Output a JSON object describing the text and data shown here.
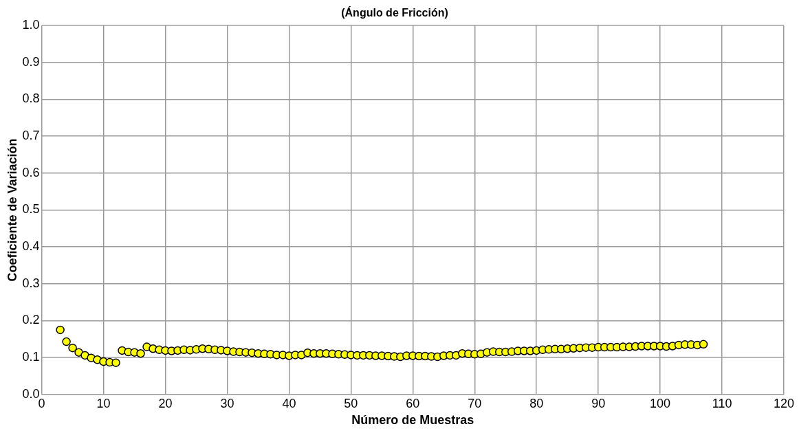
{
  "chart_data": {
    "type": "scatter",
    "title": "(Ángulo de Fricción)",
    "xlabel": "Número de Muestras",
    "ylabel": "Coeficiente de Variación",
    "x": [
      3,
      4,
      5,
      6,
      7,
      8,
      9,
      10,
      11,
      12,
      13,
      14,
      15,
      16,
      17,
      18,
      19,
      20,
      21,
      22,
      23,
      24,
      25,
      26,
      27,
      28,
      29,
      30,
      31,
      32,
      33,
      34,
      35,
      36,
      37,
      38,
      39,
      40,
      41,
      42,
      43,
      44,
      45,
      46,
      47,
      48,
      49,
      50,
      51,
      52,
      53,
      54,
      55,
      56,
      57,
      58,
      59,
      60,
      61,
      62,
      63,
      64,
      65,
      66,
      67,
      68,
      69,
      70,
      71,
      72,
      73,
      74,
      75,
      76,
      77,
      78,
      79,
      80,
      81,
      82,
      83,
      84,
      85,
      86,
      87,
      88,
      89,
      90,
      91,
      92,
      93,
      94,
      95,
      96,
      97,
      98,
      99,
      100,
      101,
      102,
      103,
      104,
      105,
      106,
      107
    ],
    "series": [
      {
        "color": "#ffff00",
        "values": [
          0.175,
          0.143,
          0.126,
          0.114,
          0.106,
          0.099,
          0.094,
          0.089,
          0.087,
          0.086,
          0.119,
          0.115,
          0.114,
          0.111,
          0.129,
          0.124,
          0.121,
          0.119,
          0.118,
          0.119,
          0.121,
          0.12,
          0.122,
          0.124,
          0.123,
          0.121,
          0.12,
          0.118,
          0.116,
          0.115,
          0.114,
          0.113,
          0.111,
          0.11,
          0.109,
          0.107,
          0.107,
          0.105,
          0.107,
          0.107,
          0.113,
          0.111,
          0.111,
          0.111,
          0.11,
          0.109,
          0.108,
          0.107,
          0.106,
          0.106,
          0.106,
          0.105,
          0.105,
          0.104,
          0.103,
          0.102,
          0.105,
          0.105,
          0.104,
          0.104,
          0.103,
          0.102,
          0.105,
          0.106,
          0.106,
          0.111,
          0.11,
          0.109,
          0.11,
          0.114,
          0.116,
          0.115,
          0.115,
          0.116,
          0.118,
          0.118,
          0.118,
          0.119,
          0.121,
          0.122,
          0.123,
          0.123,
          0.124,
          0.125,
          0.126,
          0.127,
          0.127,
          0.128,
          0.128,
          0.128,
          0.128,
          0.129,
          0.129,
          0.13,
          0.131,
          0.131,
          0.131,
          0.131,
          0.13,
          0.131,
          0.134,
          0.135,
          0.135,
          0.134,
          0.136
        ]
      }
    ],
    "xlim": [
      0,
      120
    ],
    "xticks": [
      0,
      10,
      20,
      30,
      40,
      50,
      60,
      70,
      80,
      90,
      100,
      110,
      120
    ],
    "ylim": [
      0,
      1
    ],
    "yticks": [
      {
        "value": 0,
        "label": "0.0"
      },
      0.1,
      0.2,
      0.3,
      0.4,
      0.5,
      0.6,
      0.7,
      0.8,
      0.9,
      {
        "value": 1,
        "label": "1.0"
      }
    ],
    "grid": true,
    "legend": false,
    "marker": "circle"
  }
}
